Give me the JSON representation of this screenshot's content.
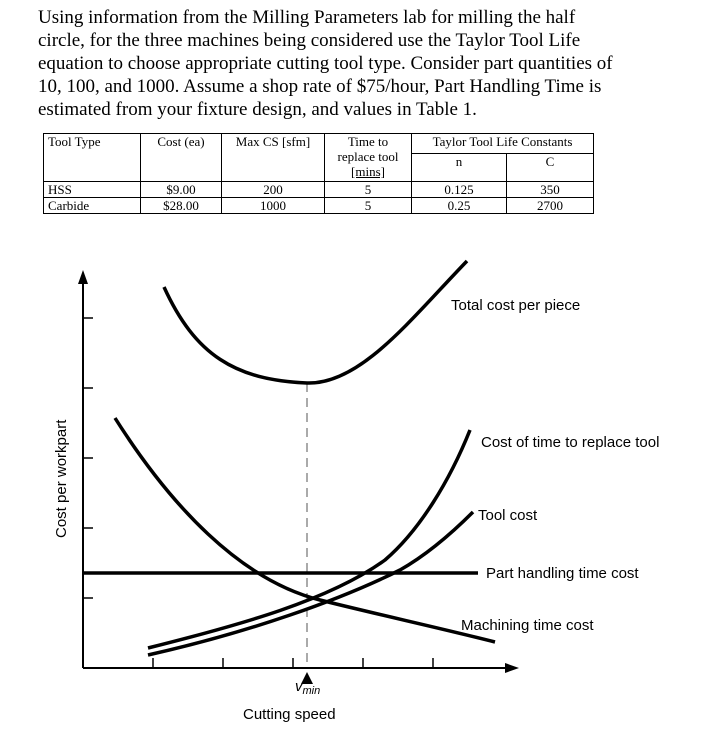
{
  "paragraph": [
    "Using information from the Milling Parameters lab for milling the half",
    "circle, for the three machines being considered use the Taylor Tool Life",
    "equation to choose appropriate cutting tool type.  Consider part quantities of",
    "10, 100, and 1000.  Assume a shop rate of $75/hour, Part Handling Time is",
    "estimated from your fixture design, and values in Table 1."
  ],
  "table": {
    "headers": {
      "tool_type": "Tool Type",
      "cost": "Cost (ea)",
      "max_cs": "Max CS [sfm]",
      "time_line1": "Time to",
      "time_line2": "replace tool",
      "time_line3": "[mins]",
      "taylor": "Taylor Tool Life Constants",
      "n": "n",
      "c": "C"
    },
    "rows": [
      {
        "tool": "HSS",
        "cost": "$9.00",
        "cs": "200",
        "time": "5",
        "n": "0.125",
        "c": "350"
      },
      {
        "tool": "Carbide",
        "cost": "$28.00",
        "cs": "1000",
        "time": "5",
        "n": "0.25",
        "c": "2700"
      }
    ]
  },
  "figure": {
    "y_axis_label": "Cost per workpart",
    "x_axis_label": "Cutting speed",
    "vmin_label": "v",
    "vmin_sub": "min",
    "curve_labels": {
      "total": "Total cost per piece",
      "replace": "Cost of time to replace tool",
      "tool": "Tool cost",
      "handling": "Part handling time cost",
      "machining": "Machining time cost"
    }
  }
}
